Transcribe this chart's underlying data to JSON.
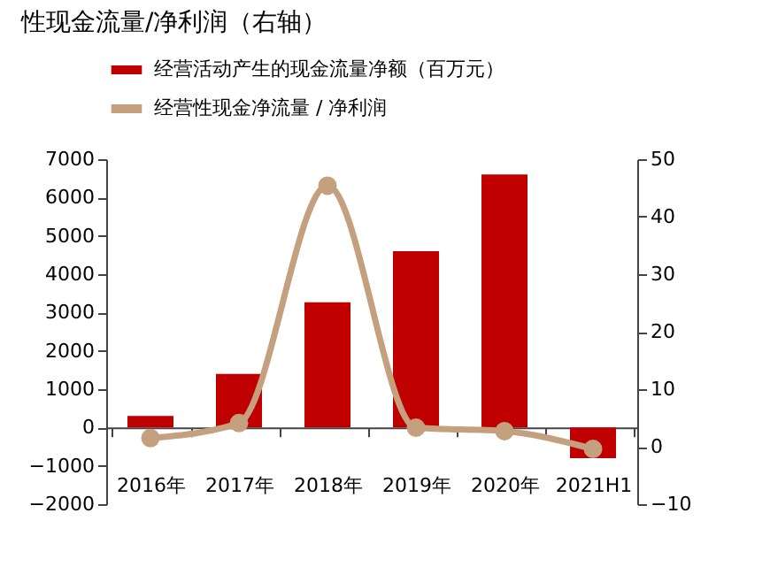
{
  "chart_data": {
    "type": "bar",
    "title": "性现金流量/净利润（右轴）",
    "categories": [
      "2016年",
      "2017年",
      "2018年",
      "2019年",
      "2020年",
      "2021H1"
    ],
    "series": [
      {
        "name": "经营活动产生的现金流量净额（百万元）",
        "color": "#c00000",
        "values": [
          300,
          1400,
          3270,
          4600,
          6600,
          -800
        ]
      },
      {
        "name": "经营性现金净流量 / 净利润",
        "type": "line",
        "axis": "y2",
        "color": "#c4a07f",
        "values": [
          1.5,
          4.1,
          45.4,
          3.3,
          2.7,
          -0.4
        ]
      }
    ],
    "ylim": [
      -2000,
      7000
    ],
    "yticks": [
      -2000,
      -1000,
      0,
      1000,
      2000,
      3000,
      4000,
      5000,
      6000,
      7000
    ],
    "y2lim": [
      -10,
      50
    ],
    "y2ticks": [
      -10,
      0,
      10,
      20,
      30,
      40,
      50
    ],
    "marker": "circle",
    "legend": "top"
  }
}
